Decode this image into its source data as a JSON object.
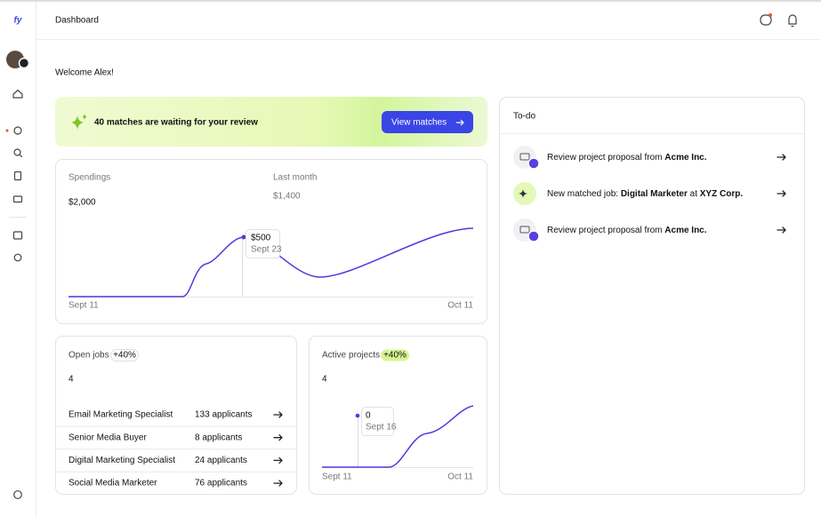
{
  "sidebar": {
    "logo": "fy"
  },
  "header": {
    "title": "Dashboard"
  },
  "welcome": "Welcome Alex!",
  "banner": {
    "text": "40 matches are waiting for your review",
    "button": "View matches"
  },
  "spendings": {
    "label": "Spendings",
    "value": "$2,000",
    "last_month_label": "Last month",
    "last_month_value": "$1,400",
    "tooltip": {
      "value": "$500",
      "date": "Sept 23"
    },
    "x_start": "Sept 11",
    "x_end": "Oct 11"
  },
  "open_jobs": {
    "label": "Open jobs",
    "badge": "+40%",
    "count": "4",
    "rows": [
      [
        "Email Marketing Specialist",
        "133 applicants"
      ],
      [
        "Senior Media Buyer",
        "8 applicants"
      ],
      [
        "Digital Marketing Specialist",
        "24 applicants"
      ],
      [
        "Social Media Marketer",
        "76 applicants"
      ]
    ]
  },
  "active_projects": {
    "label": "Active projects",
    "badge": "+40%",
    "count": "4",
    "tooltip": {
      "value": "0",
      "date": "Sept 16"
    },
    "x_start": "Sept 11",
    "x_end": "Oct 11"
  },
  "todo": {
    "title": "To-do",
    "items": [
      [
        "Review project proposal from ",
        "Acme Inc."
      ],
      [
        "New matched job: ",
        "Digital Marketer",
        " at ",
        "XYZ Corp."
      ],
      [
        "Review project proposal from ",
        "Acme Inc."
      ]
    ]
  }
}
